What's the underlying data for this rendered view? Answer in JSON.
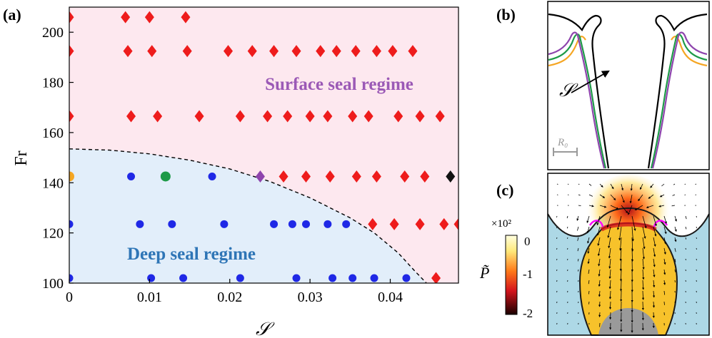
{
  "panels": {
    "a": "(a)",
    "b": "(b)",
    "c": "(c)"
  },
  "chart_data": {
    "type": "scatter",
    "xlabel": "𝒮",
    "ylabel": "Fr",
    "xlim": [
      0,
      0.0485
    ],
    "ylim": [
      100,
      210
    ],
    "xticks": [
      "0",
      "0.01",
      "0.02",
      "0.03",
      "0.04"
    ],
    "xtick_values": [
      0,
      0.01,
      0.02,
      0.03,
      0.04
    ],
    "yticks": [
      "100",
      "120",
      "140",
      "160",
      "180",
      "200"
    ],
    "ytick_values": [
      100,
      120,
      140,
      160,
      180,
      200
    ],
    "regions": [
      {
        "name": "Surface seal regime",
        "color": "#fde8ef",
        "label_color": "#9b59b6"
      },
      {
        "name": "Deep seal regime",
        "color": "#e2eefa",
        "label_color": "#2e75b6"
      }
    ],
    "boundary": {
      "style": "dashed",
      "points": [
        [
          0,
          153.5
        ],
        [
          0.005,
          153
        ],
        [
          0.01,
          151.5
        ],
        [
          0.015,
          149
        ],
        [
          0.02,
          145.5
        ],
        [
          0.025,
          140.5
        ],
        [
          0.03,
          134
        ],
        [
          0.035,
          126
        ],
        [
          0.038,
          120
        ],
        [
          0.041,
          112
        ],
        [
          0.043,
          105
        ],
        [
          0.0445,
          100
        ]
      ]
    },
    "series": [
      {
        "marker": "diamond",
        "color": "#ee1c1c",
        "points": [
          [
            0,
            206
          ],
          [
            0.007,
            206
          ],
          [
            0.01,
            206
          ],
          [
            0.0145,
            206
          ],
          [
            0,
            192.5
          ],
          [
            0.0073,
            192.5
          ],
          [
            0.0103,
            192.5
          ],
          [
            0.0147,
            192.5
          ],
          [
            0.0198,
            192.5
          ],
          [
            0.0228,
            192.5
          ],
          [
            0.0255,
            192.5
          ],
          [
            0.0283,
            192.5
          ],
          [
            0.0313,
            192.5
          ],
          [
            0.0333,
            192.5
          ],
          [
            0.0357,
            192.5
          ],
          [
            0.0383,
            192.5
          ],
          [
            0.0403,
            192.5
          ],
          [
            0.0428,
            192.5
          ],
          [
            0,
            166.5
          ],
          [
            0.0077,
            166.5
          ],
          [
            0.011,
            166.5
          ],
          [
            0.0162,
            166.5
          ],
          [
            0.0213,
            166.5
          ],
          [
            0.0247,
            166.5
          ],
          [
            0.0272,
            166.5
          ],
          [
            0.03,
            166.5
          ],
          [
            0.0322,
            166.5
          ],
          [
            0.0353,
            166.5
          ],
          [
            0.0373,
            166.5
          ],
          [
            0.041,
            166.5
          ],
          [
            0.0437,
            166.5
          ],
          [
            0.0462,
            166.5
          ],
          [
            0.0267,
            142.5
          ],
          [
            0.0295,
            142.5
          ],
          [
            0.0325,
            142.5
          ],
          [
            0.0358,
            142.5
          ],
          [
            0.0383,
            142.5
          ],
          [
            0.0418,
            142.5
          ],
          [
            0.0443,
            142.5
          ],
          [
            0.0378,
            123.5
          ],
          [
            0.0405,
            123.5
          ],
          [
            0.0437,
            123.5
          ],
          [
            0.0467,
            123.5
          ],
          [
            0.0485,
            123.5
          ],
          [
            0.0457,
            102
          ]
        ]
      },
      {
        "marker": "circle",
        "color": "#1f28e6",
        "points": [
          [
            0.0077,
            142.5
          ],
          [
            0.0178,
            142.5
          ],
          [
            0,
            123.5
          ],
          [
            0.0088,
            123.5
          ],
          [
            0.0128,
            123.5
          ],
          [
            0.0193,
            123.5
          ],
          [
            0.0255,
            123.5
          ],
          [
            0.0278,
            123.5
          ],
          [
            0.0295,
            123.5
          ],
          [
            0.0322,
            123.5
          ],
          [
            0.0345,
            123.5
          ],
          [
            0,
            102
          ],
          [
            0.0102,
            102
          ],
          [
            0.0142,
            102
          ],
          [
            0.0213,
            102
          ],
          [
            0.0283,
            102
          ],
          [
            0.0328,
            102
          ],
          [
            0.0353,
            102
          ],
          [
            0.038,
            102
          ],
          [
            0.042,
            102
          ]
        ]
      },
      {
        "marker": "circle",
        "color": "#f5a623",
        "points": [
          [
            0,
            142.5
          ]
        ]
      },
      {
        "marker": "circle",
        "color": "#1e9a48",
        "points": [
          [
            0.012,
            142.5
          ]
        ]
      },
      {
        "marker": "diamond",
        "color": "#8e44ad",
        "points": [
          [
            0.0238,
            142.5
          ]
        ]
      },
      {
        "marker": "diamond",
        "color": "#111111",
        "points": [
          [
            0.0475,
            142.5
          ]
        ]
      }
    ]
  },
  "panel_b": {
    "arrow_label": "𝒮",
    "scale_label": "R₀",
    "curve_colors": [
      "#f5a623",
      "#1e9a48",
      "#8e44ad",
      "#000000"
    ]
  },
  "panel_c": {
    "colorbar_label": "P̃",
    "multiplier": "×10²",
    "ticks": [
      "0",
      "-1",
      "-2"
    ],
    "fluid_color": "#add8e6",
    "bubble_color": "#f7c22b",
    "sphere_color": "#9a9a9a"
  }
}
